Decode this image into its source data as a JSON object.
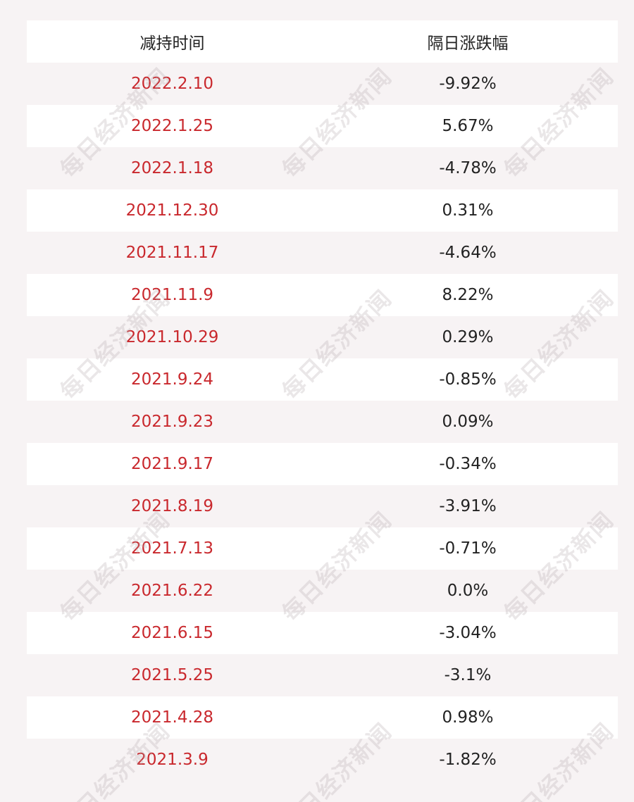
{
  "table": {
    "headers": {
      "date": "减持时间",
      "change": "隔日涨跌幅"
    },
    "rows": [
      {
        "date": "2022.2.10",
        "change": "-9.92%"
      },
      {
        "date": "2022.1.25",
        "change": "5.67%"
      },
      {
        "date": "2022.1.18",
        "change": "-4.78%"
      },
      {
        "date": "2021.12.30",
        "change": "0.31%"
      },
      {
        "date": "2021.11.17",
        "change": "-4.64%"
      },
      {
        "date": "2021.11.9",
        "change": "8.22%"
      },
      {
        "date": "2021.10.29",
        "change": "0.29%"
      },
      {
        "date": "2021.9.24",
        "change": "-0.85%"
      },
      {
        "date": "2021.9.23",
        "change": "0.09%"
      },
      {
        "date": "2021.9.17",
        "change": "-0.34%"
      },
      {
        "date": "2021.8.19",
        "change": "-3.91%"
      },
      {
        "date": "2021.7.13",
        "change": "-0.71%"
      },
      {
        "date": "2021.6.22",
        "change": "0.0%"
      },
      {
        "date": "2021.6.15",
        "change": "-3.04%"
      },
      {
        "date": "2021.5.25",
        "change": "-3.1%"
      },
      {
        "date": "2021.4.28",
        "change": "0.98%"
      },
      {
        "date": "2021.3.9",
        "change": "-1.82%"
      }
    ]
  },
  "watermark": "每日经济新闻",
  "colors": {
    "date_text": "#c9282d",
    "value_text": "#222222",
    "row_white": "#ffffff",
    "row_shade": "#f7f3f4"
  }
}
